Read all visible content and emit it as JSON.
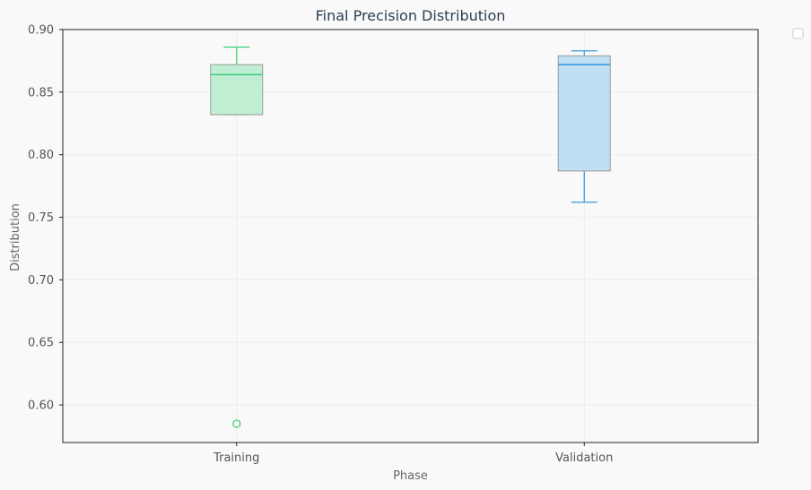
{
  "chart_data": {
    "type": "box",
    "title": "Final Precision Distribution",
    "xlabel": "Phase",
    "ylabel": "Distribution",
    "ylim": [
      0.57,
      0.9
    ],
    "yticks": [
      "0.60",
      "0.65",
      "0.70",
      "0.75",
      "0.80",
      "0.85",
      "0.90"
    ],
    "grid": true,
    "legend": "top-right (empty)",
    "categories": [
      "Training",
      "Validation"
    ],
    "boxes": [
      {
        "category": "Training",
        "whisker_low": 0.832,
        "q1": 0.832,
        "median": 0.864,
        "q3": 0.872,
        "whisker_high": 0.886,
        "outliers": [
          0.585
        ],
        "fill": "#bfeed3",
        "edge": "#2ecc71"
      },
      {
        "category": "Validation",
        "whisker_low": 0.762,
        "q1": 0.787,
        "median": 0.872,
        "q3": 0.879,
        "whisker_high": 0.883,
        "outliers": [],
        "fill": "#bfdff4",
        "edge": "#3498db"
      }
    ]
  }
}
